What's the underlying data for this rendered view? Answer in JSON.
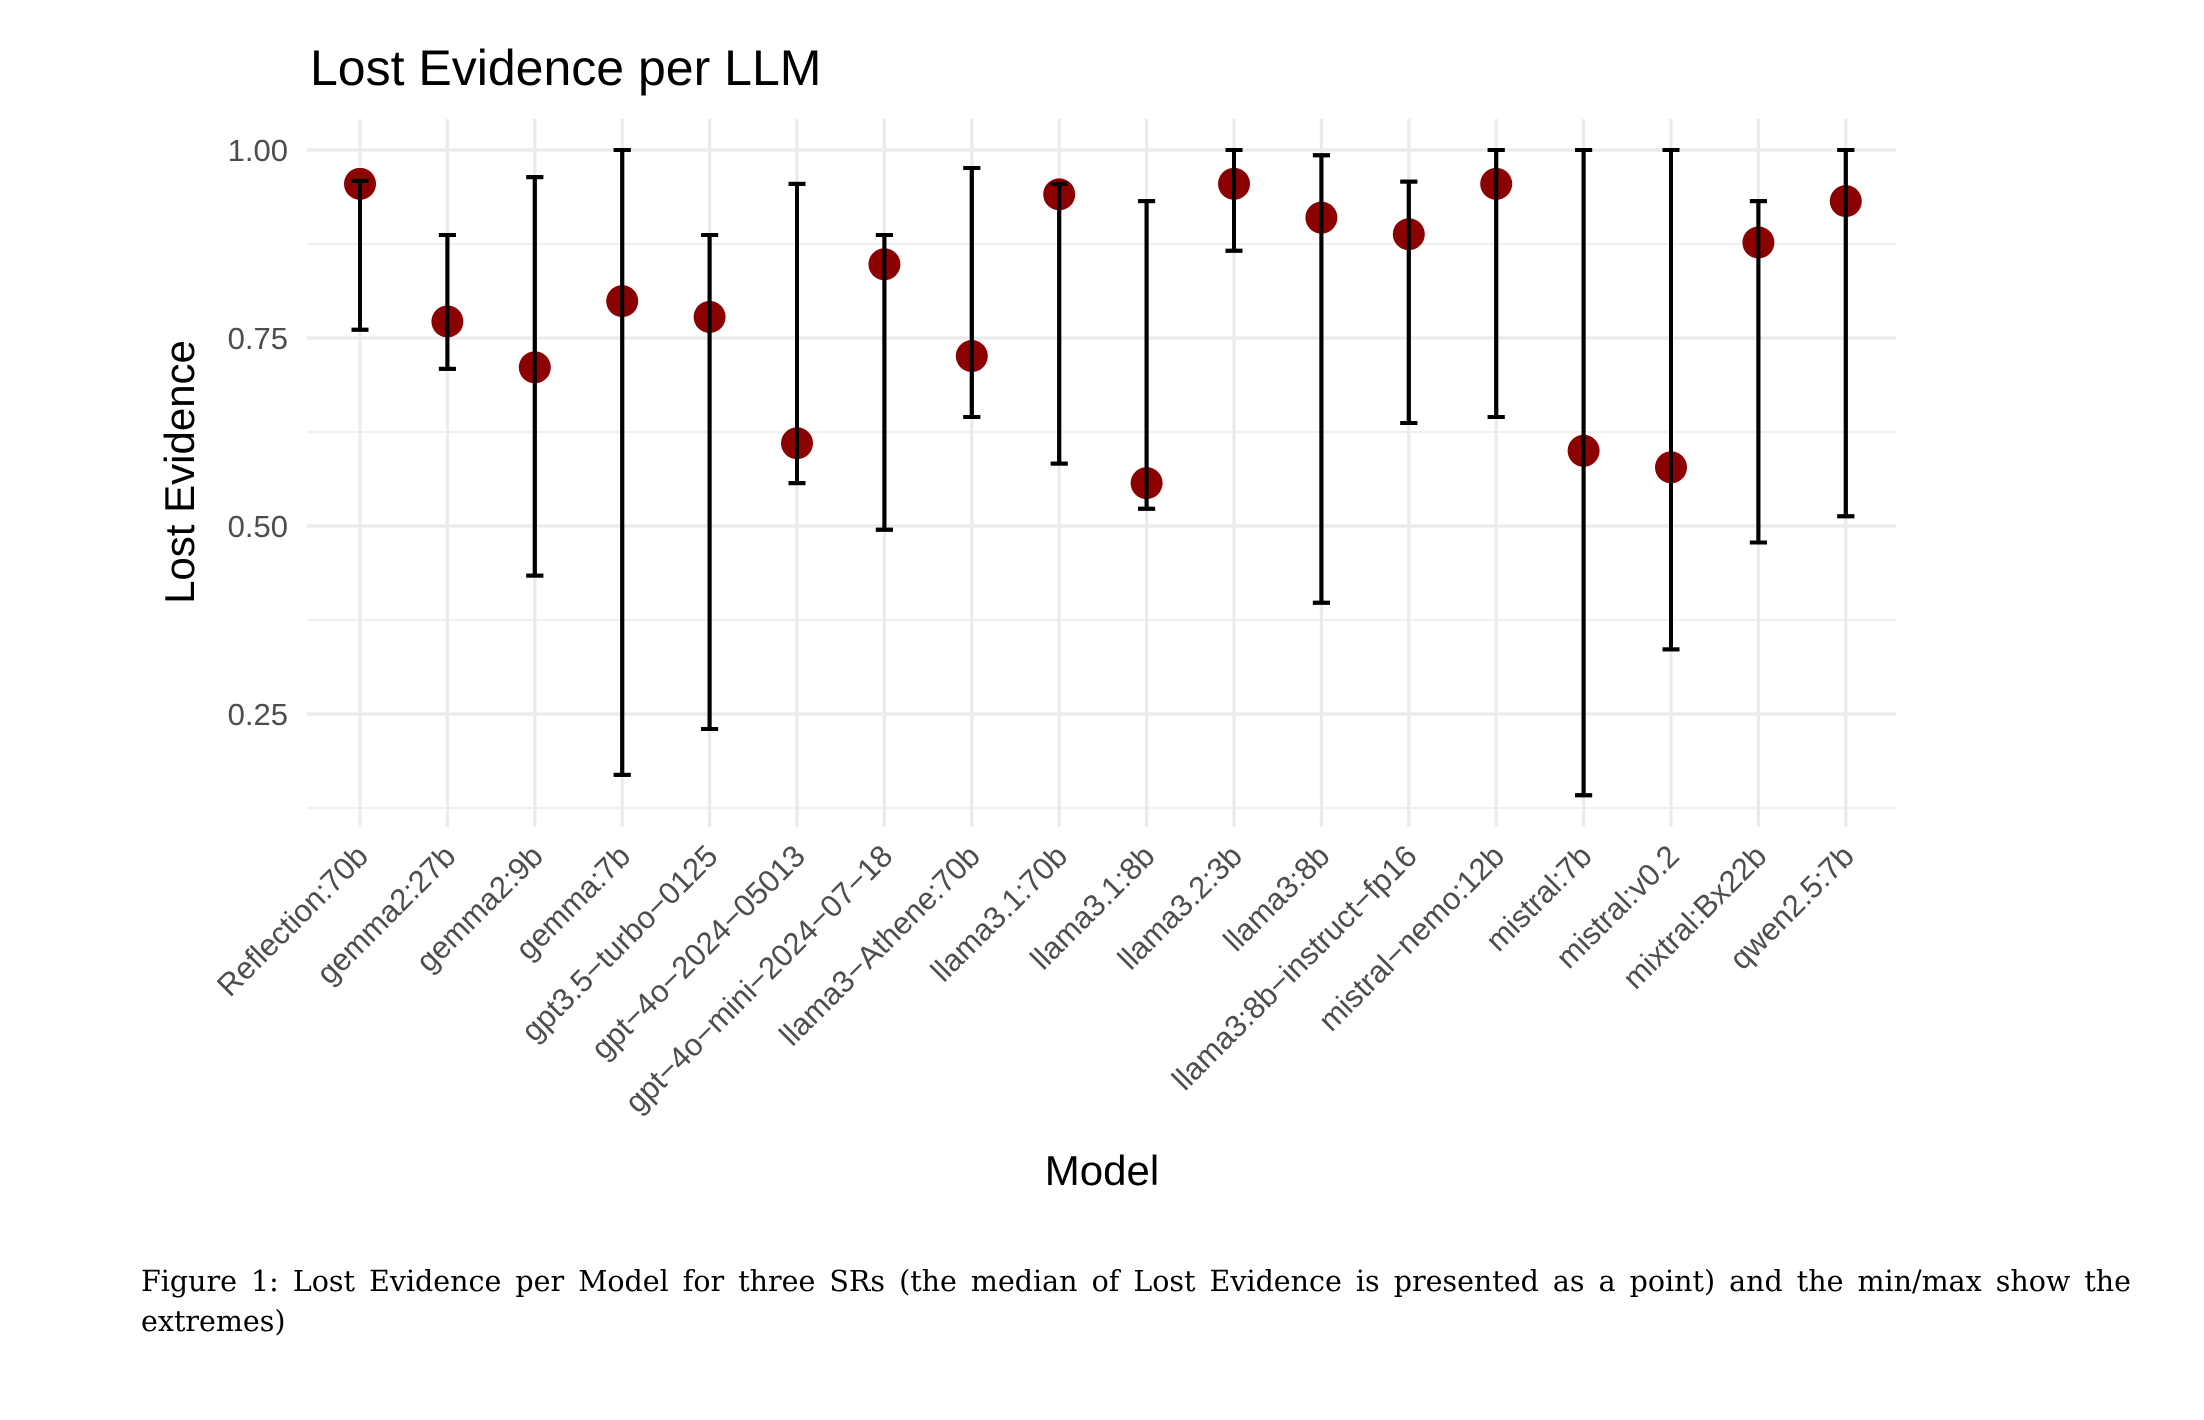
{
  "chart_data": {
    "type": "scatter",
    "subtype": "point-with-error-bars",
    "title": "Lost Evidence per LLM",
    "xlabel": "Model",
    "ylabel": "Lost Evidence",
    "ylim": [
      0.11,
      1.035
    ],
    "yticks": [
      0.25,
      0.5,
      0.75,
      1.0
    ],
    "ytick_labels": [
      "0.25",
      "0.50",
      "0.75",
      "1.00"
    ],
    "grid": true,
    "legend": "none",
    "point_color": "#8b0000",
    "errorbar_color": "#000000",
    "categories": [
      "Reflection:70b",
      "gemma2:27b",
      "gemma2:9b",
      "gemma:7b",
      "gpt3.5−turbo−0125",
      "gpt−4o−2024−05013",
      "gpt−4o−mini−2024−07−18",
      "llama3−Athene:70b",
      "llama3.1:70b",
      "llama3.1:8b",
      "llama3.2:3b",
      "llama3:8b",
      "llama3:8b−instruct−fp16",
      "mistral−nemo:12b",
      "mistral:7b",
      "mistral:v0.2",
      "mixtral:Bx22b",
      "qwen2.5:7b"
    ],
    "series": [
      {
        "name": "median",
        "values": [
          0.955,
          0.772,
          0.711,
          0.799,
          0.778,
          0.61,
          0.848,
          0.726,
          0.941,
          0.557,
          0.955,
          0.91,
          0.888,
          0.955,
          0.6,
          0.578,
          0.877,
          0.932
        ]
      },
      {
        "name": "min",
        "values": [
          0.761,
          0.709,
          0.434,
          0.169,
          0.23,
          0.557,
          0.495,
          0.645,
          0.583,
          0.523,
          0.866,
          0.398,
          0.637,
          0.645,
          0.142,
          0.336,
          0.478,
          0.513
        ]
      },
      {
        "name": "max",
        "values": [
          0.959,
          0.887,
          0.964,
          1.0,
          0.887,
          0.955,
          0.887,
          0.976,
          0.955,
          0.932,
          1.0,
          0.993,
          0.958,
          1.0,
          1.0,
          1.0,
          0.932,
          1.0
        ]
      }
    ]
  },
  "caption": "Figure 1: Lost Evidence per Model for three SRs (the median of Lost Evidence is presented as a point) and the min/max show the extremes)"
}
